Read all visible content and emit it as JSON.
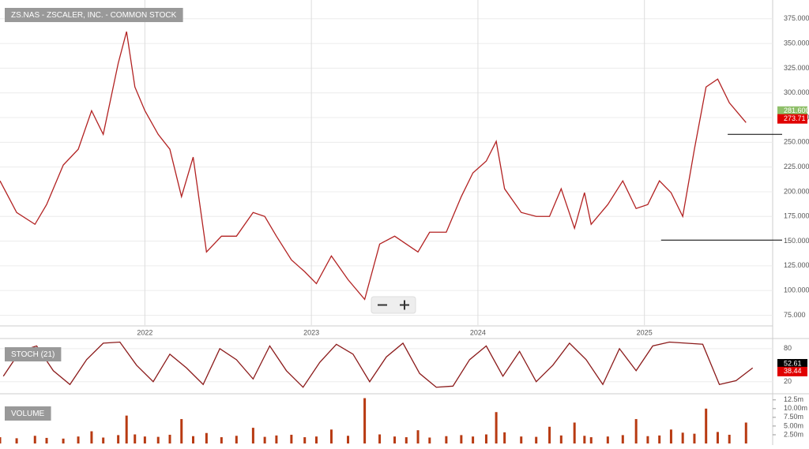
{
  "chart_data": [
    {
      "type": "line",
      "title": "ZS.NAS - ZSCALER, INC. - COMMON STOCK",
      "color": "#b22222",
      "x": [
        2021.13,
        2021.23,
        2021.34,
        2021.41,
        2021.51,
        2021.6,
        2021.68,
        2021.75,
        2021.84,
        2021.89,
        2021.94,
        2022.0,
        2022.08,
        2022.15,
        2022.22,
        2022.29,
        2022.37,
        2022.46,
        2022.55,
        2022.65,
        2022.72,
        2022.79,
        2022.88,
        2022.96,
        2023.03,
        2023.12,
        2023.22,
        2023.32,
        2023.41,
        2023.5,
        2023.57,
        2023.64,
        2023.71,
        2023.81,
        2023.9,
        2023.97,
        2024.05,
        2024.11,
        2024.16,
        2024.26,
        2024.35,
        2024.43,
        2024.5,
        2024.58,
        2024.64,
        2024.68,
        2024.78,
        2024.87,
        2024.95,
        2025.02,
        2025.09,
        2025.16,
        2025.23,
        2025.3,
        2025.37,
        2025.44,
        2025.51,
        2025.61
      ],
      "values": [
        211,
        179,
        167,
        187,
        227,
        243,
        282,
        258,
        330,
        362,
        306,
        282,
        258,
        243,
        195,
        235,
        139,
        155,
        155,
        179,
        175,
        155,
        131,
        119,
        107,
        135,
        111,
        91,
        147,
        155,
        147,
        139,
        159,
        159,
        195,
        219,
        231,
        251,
        203,
        179,
        175,
        175,
        203,
        163,
        199,
        167,
        187,
        211,
        183,
        187,
        211,
        199,
        175,
        243,
        306,
        314,
        290,
        270
      ],
      "xlim": [
        2021.13,
        2025.77
      ],
      "xticks": [
        2022,
        2023,
        2024,
        2025
      ],
      "ylim": [
        65,
        394
      ],
      "yticks": [
        {
          "value": 75,
          "label": "75.000"
        },
        {
          "value": 100,
          "label": "100.000"
        },
        {
          "value": 125,
          "label": "125.000"
        },
        {
          "value": 150,
          "label": "150.000"
        },
        {
          "value": 175,
          "label": "175.000"
        },
        {
          "value": 200,
          "label": "200.000"
        },
        {
          "value": 225,
          "label": "225.000"
        },
        {
          "value": 250,
          "label": "250.000"
        },
        {
          "value": 275,
          "label": "275.000"
        },
        {
          "value": 300,
          "label": "300.000"
        },
        {
          "value": 325,
          "label": "325.000"
        },
        {
          "value": 350,
          "label": "350.000"
        },
        {
          "value": 375,
          "label": "375.000"
        }
      ],
      "markers": [
        {
          "value": 281.6,
          "label": "281.600",
          "color": "#8fbf6a"
        },
        {
          "value": 273.71,
          "label": "273.71",
          "color": "#e00000"
        }
      ],
      "hlines": [
        {
          "value": 258,
          "from": 2025.5
        },
        {
          "value": 151,
          "from": 2025.1
        }
      ],
      "grid": true
    },
    {
      "type": "line",
      "title": "STOCH (21)",
      "color": "#8b1a1a",
      "x": [
        2021.15,
        2021.25,
        2021.35,
        2021.45,
        2021.55,
        2021.65,
        2021.75,
        2021.85,
        2021.95,
        2022.05,
        2022.15,
        2022.25,
        2022.35,
        2022.45,
        2022.55,
        2022.65,
        2022.75,
        2022.85,
        2022.95,
        2023.05,
        2023.15,
        2023.25,
        2023.35,
        2023.45,
        2023.55,
        2023.65,
        2023.75,
        2023.85,
        2023.95,
        2024.05,
        2024.15,
        2024.25,
        2024.35,
        2024.45,
        2024.55,
        2024.65,
        2024.75,
        2024.85,
        2024.95,
        2025.05,
        2025.15,
        2025.25,
        2025.35,
        2025.45,
        2025.55,
        2025.65
      ],
      "values": [
        30,
        75,
        85,
        40,
        15,
        60,
        90,
        92,
        50,
        20,
        70,
        45,
        15,
        80,
        60,
        25,
        85,
        40,
        10,
        55,
        88,
        70,
        20,
        65,
        90,
        35,
        10,
        12,
        60,
        85,
        30,
        75,
        20,
        50,
        90,
        60,
        15,
        80,
        40,
        85,
        92,
        90,
        88,
        15,
        22,
        45
      ],
      "xlim": [
        2021.13,
        2025.77
      ],
      "ylim": [
        1,
        97
      ],
      "yticks": [
        20,
        80
      ],
      "markers": [
        {
          "value": 52.61,
          "label": "52.61",
          "color": "#000000"
        },
        {
          "value": 38.44,
          "label": "38.44",
          "color": "#e00000"
        }
      ],
      "grid": true
    },
    {
      "type": "bar",
      "title": "VOLUME",
      "color": "#b83a12",
      "x": [
        2021.13,
        2021.23,
        2021.34,
        2021.41,
        2021.51,
        2021.6,
        2021.68,
        2021.75,
        2021.84,
        2021.89,
        2021.94,
        2022.0,
        2022.08,
        2022.15,
        2022.22,
        2022.29,
        2022.37,
        2022.46,
        2022.55,
        2022.65,
        2022.72,
        2022.79,
        2022.88,
        2022.96,
        2023.03,
        2023.12,
        2023.22,
        2023.32,
        2023.41,
        2023.5,
        2023.57,
        2023.64,
        2023.71,
        2023.81,
        2023.9,
        2023.97,
        2024.05,
        2024.11,
        2024.16,
        2024.26,
        2024.35,
        2024.43,
        2024.5,
        2024.58,
        2024.64,
        2024.68,
        2024.78,
        2024.87,
        2024.95,
        2025.02,
        2025.09,
        2025.16,
        2025.23,
        2025.3,
        2025.37,
        2025.44,
        2025.51,
        2025.61
      ],
      "values": [
        1.8,
        1.5,
        2.2,
        1.6,
        1.4,
        2.0,
        3.5,
        1.7,
        2.4,
        8.0,
        2.6,
        2.0,
        1.9,
        2.5,
        7.0,
        2.1,
        3.0,
        1.8,
        2.2,
        4.5,
        1.9,
        2.3,
        2.5,
        1.8,
        2.0,
        4.0,
        2.2,
        13.0,
        2.6,
        2.0,
        1.8,
        3.8,
        1.7,
        2.1,
        2.4,
        2.0,
        2.6,
        9.0,
        3.2,
        2.0,
        1.9,
        4.8,
        2.3,
        6.0,
        2.2,
        1.8,
        2.0,
        2.4,
        7.0,
        2.1,
        2.3,
        4.0,
        3.1,
        2.8,
        10.0,
        3.3,
        2.5,
        6.0
      ],
      "xlim": [
        2021.13,
        2025.77
      ],
      "ylim": [
        0,
        12.9
      ],
      "yticks": [
        {
          "value": 2.5,
          "label": "2.50m"
        },
        {
          "value": 5,
          "label": "5.00m"
        },
        {
          "value": 7.5,
          "label": "7.50m"
        },
        {
          "value": 10,
          "label": "10.00m"
        },
        {
          "value": 12.5,
          "label": "12.5m"
        }
      ],
      "grid": false
    }
  ]
}
